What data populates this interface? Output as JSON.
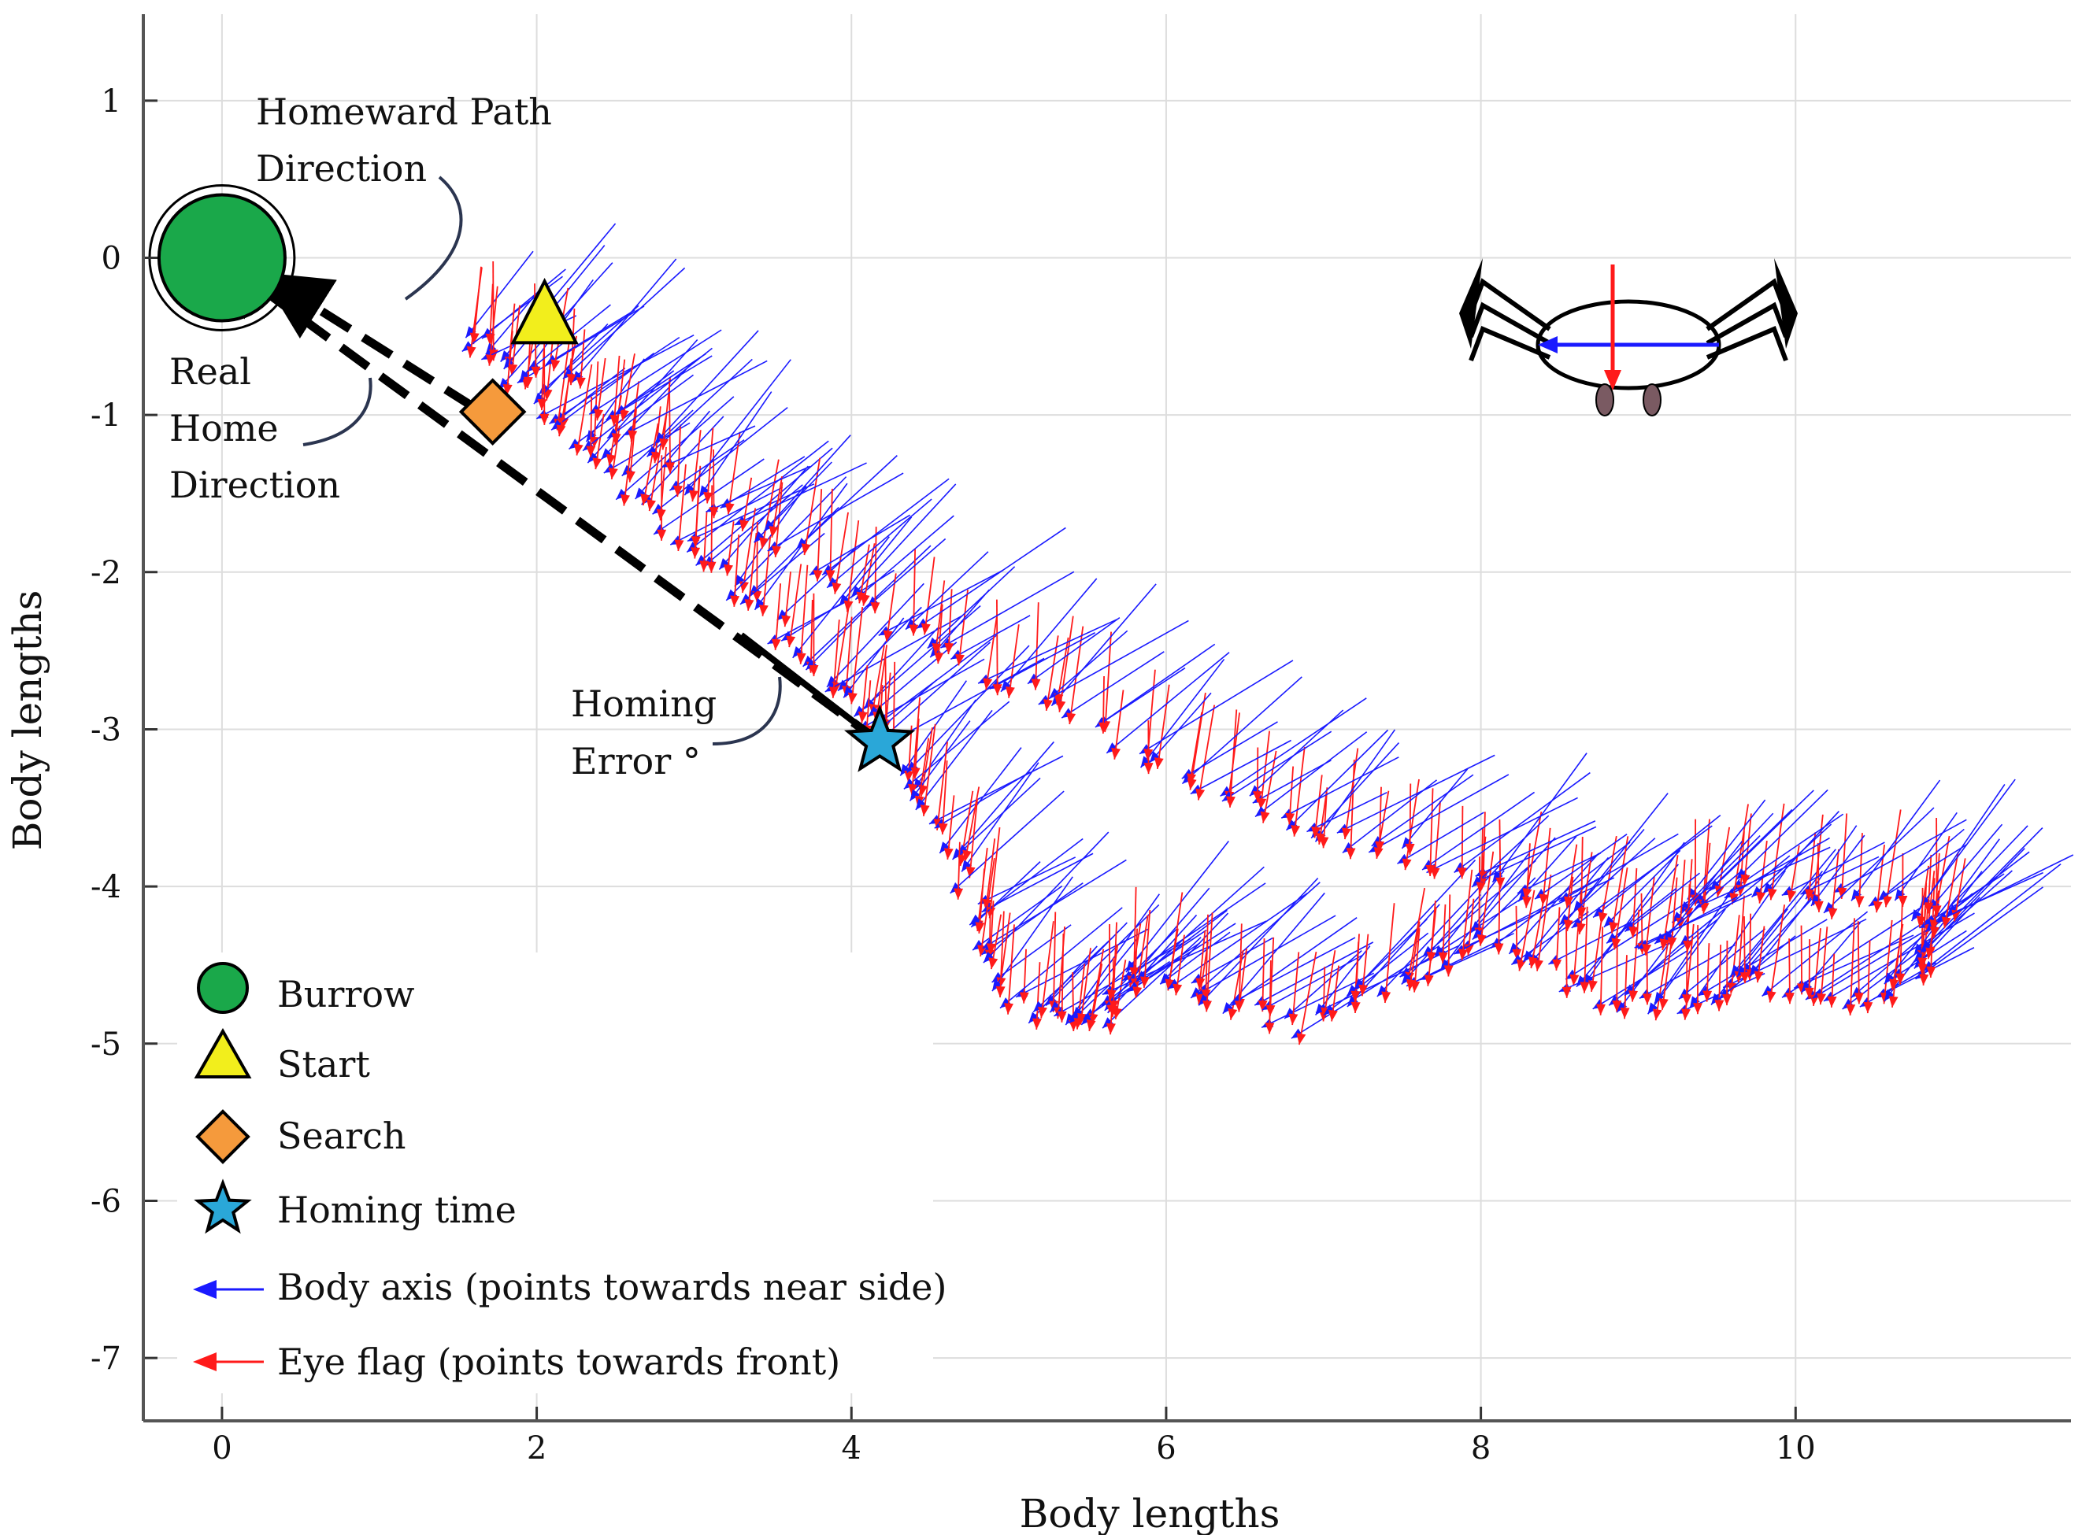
{
  "chart_data": {
    "type": "scatter",
    "title": "",
    "xlabel": "Body lengths",
    "ylabel": "Body lengths",
    "xlim": [
      -0.5,
      11.75
    ],
    "ylim": [
      -7.4,
      1.55
    ],
    "xticks": [
      0,
      2,
      4,
      6,
      8,
      10
    ],
    "yticks": [
      1,
      0,
      -1,
      -2,
      -3,
      -4,
      -5,
      -6,
      -7
    ],
    "grid": true,
    "markers": [
      {
        "name": "Burrow",
        "x": 0.0,
        "y": 0.0,
        "shape": "circle",
        "color": "#1aa84a"
      },
      {
        "name": "Start",
        "x": 2.05,
        "y": -0.35,
        "shape": "triangle",
        "color": "#f2ee1c"
      },
      {
        "name": "Search",
        "x": 1.72,
        "y": -0.98,
        "shape": "diamond",
        "color": "#f59a3c"
      },
      {
        "name": "Homing time",
        "x": 4.18,
        "y": -3.08,
        "shape": "star",
        "color": "#2aa7d8"
      }
    ],
    "direction_arrows": [
      {
        "name": "Homeward Path Direction",
        "from": [
          1.6,
          -0.95
        ],
        "to": [
          0.38,
          -0.18
        ]
      },
      {
        "name": "Real Home Direction",
        "from": [
          4.18,
          -3.08
        ],
        "to": [
          0.05,
          -0.05
        ]
      }
    ],
    "trajectory": [
      [
        1.55,
        -0.5
      ],
      [
        1.9,
        -0.85
      ],
      [
        2.3,
        -1.25
      ],
      [
        2.8,
        -1.7
      ],
      [
        3.3,
        -2.2
      ],
      [
        3.8,
        -2.7
      ],
      [
        4.2,
        -3.05
      ],
      [
        4.5,
        -3.6
      ],
      [
        4.8,
        -4.2
      ],
      [
        5.0,
        -4.8
      ],
      [
        5.5,
        -4.9
      ],
      [
        5.7,
        -4.6
      ],
      [
        6.2,
        -4.7
      ],
      [
        6.8,
        -4.9
      ],
      [
        7.5,
        -4.6
      ],
      [
        8.0,
        -4.3
      ],
      [
        8.6,
        -4.7
      ],
      [
        9.2,
        -4.8
      ],
      [
        9.7,
        -4.6
      ],
      [
        10.3,
        -4.8
      ],
      [
        10.8,
        -4.5
      ],
      [
        10.9,
        -4.2
      ],
      [
        10.2,
        -4.1
      ],
      [
        9.5,
        -4.0
      ],
      [
        9.1,
        -4.4
      ],
      [
        8.5,
        -4.2
      ],
      [
        7.8,
        -3.9
      ],
      [
        7.0,
        -3.7
      ],
      [
        6.3,
        -3.4
      ],
      [
        5.5,
        -3.0
      ],
      [
        4.7,
        -2.6
      ],
      [
        4.0,
        -2.2
      ],
      [
        3.3,
        -1.7
      ],
      [
        2.6,
        -1.2
      ],
      [
        1.9,
        -0.6
      ]
    ],
    "annotations": [
      {
        "lines": [
          "Homeward  Path",
          "Direction"
        ]
      },
      {
        "lines": [
          "Real",
          "Home",
          "Direction"
        ]
      },
      {
        "lines": [
          "Homing",
          "Error °"
        ]
      }
    ],
    "legend": [
      {
        "label": "Burrow",
        "symbol": "circle",
        "color": "#1aa84a"
      },
      {
        "label": "Start",
        "symbol": "triangle",
        "color": "#f2ee1c"
      },
      {
        "label": "Search",
        "symbol": "diamond",
        "color": "#f59a3c"
      },
      {
        "label": "Homing time",
        "symbol": "star",
        "color": "#2aa7d8"
      },
      {
        "label": "Body axis (points towards  near side)",
        "symbol": "arrow",
        "color": "#1a1aff"
      },
      {
        "label": "Eye flag  (points towards  front)",
        "symbol": "arrow",
        "color": "#ff1a1a"
      }
    ],
    "colors": {
      "body_axis": "#1a1aff",
      "eye_flag": "#ff1a1a",
      "grid": "#dddddd"
    }
  }
}
